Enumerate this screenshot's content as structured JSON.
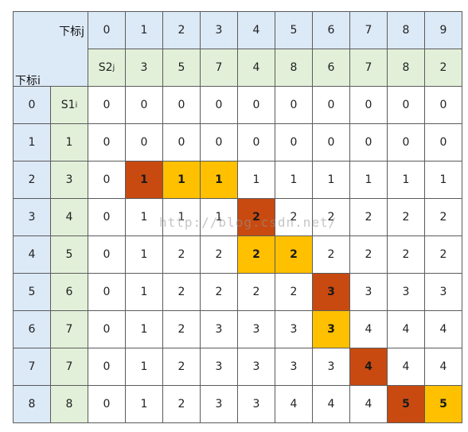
{
  "corner": {
    "j_label": "下标j",
    "i_label": "下标i"
  },
  "s2_label": {
    "base": "S2",
    "sub": "j"
  },
  "s1_label": {
    "base": "S1",
    "sub": "i"
  },
  "j_indices": [
    "0",
    "1",
    "2",
    "3",
    "4",
    "5",
    "6",
    "7",
    "8",
    "9"
  ],
  "s2_values": [
    "3",
    "5",
    "7",
    "4",
    "8",
    "6",
    "7",
    "8",
    "2"
  ],
  "rows": [
    {
      "i": "0",
      "s1": "",
      "values": [
        "0",
        "0",
        "0",
        "0",
        "0",
        "0",
        "0",
        "0",
        "0",
        "0"
      ]
    },
    {
      "i": "1",
      "s1": "1",
      "values": [
        "0",
        "0",
        "0",
        "0",
        "0",
        "0",
        "0",
        "0",
        "0",
        "0"
      ]
    },
    {
      "i": "2",
      "s1": "3",
      "values": [
        "0",
        "1",
        "1",
        "1",
        "1",
        "1",
        "1",
        "1",
        "1",
        "1"
      ]
    },
    {
      "i": "3",
      "s1": "4",
      "values": [
        "0",
        "1",
        "1",
        "1",
        "2",
        "2",
        "2",
        "2",
        "2",
        "2"
      ]
    },
    {
      "i": "4",
      "s1": "5",
      "values": [
        "0",
        "1",
        "2",
        "2",
        "2",
        "2",
        "2",
        "2",
        "2",
        "2"
      ]
    },
    {
      "i": "5",
      "s1": "6",
      "values": [
        "0",
        "1",
        "2",
        "2",
        "2",
        "2",
        "3",
        "3",
        "3",
        "3"
      ]
    },
    {
      "i": "6",
      "s1": "7",
      "values": [
        "0",
        "1",
        "2",
        "3",
        "3",
        "3",
        "3",
        "4",
        "4",
        "4"
      ]
    },
    {
      "i": "7",
      "s1": "7",
      "values": [
        "0",
        "1",
        "2",
        "3",
        "3",
        "3",
        "3",
        "4",
        "4",
        "4"
      ]
    },
    {
      "i": "8",
      "s1": "8",
      "values": [
        "0",
        "1",
        "2",
        "3",
        "3",
        "4",
        "4",
        "4",
        "5",
        "5"
      ]
    }
  ],
  "highlights": [
    {
      "row": 2,
      "col": 1,
      "color": "red"
    },
    {
      "row": 2,
      "col": 2,
      "color": "orange"
    },
    {
      "row": 2,
      "col": 3,
      "color": "orange"
    },
    {
      "row": 3,
      "col": 4,
      "color": "red"
    },
    {
      "row": 4,
      "col": 4,
      "color": "orange"
    },
    {
      "row": 4,
      "col": 5,
      "color": "orange"
    },
    {
      "row": 5,
      "col": 6,
      "color": "red"
    },
    {
      "row": 6,
      "col": 6,
      "color": "orange"
    },
    {
      "row": 7,
      "col": 7,
      "color": "red"
    },
    {
      "row": 8,
      "col": 8,
      "color": "red"
    },
    {
      "row": 8,
      "col": 9,
      "color": "orange"
    }
  ],
  "colors": {
    "blue": "#dce9f7",
    "green": "#e2f0d9",
    "red": "#c84a10",
    "orange": "#ffc000"
  },
  "watermark": "http://blog.csdn.net/"
}
